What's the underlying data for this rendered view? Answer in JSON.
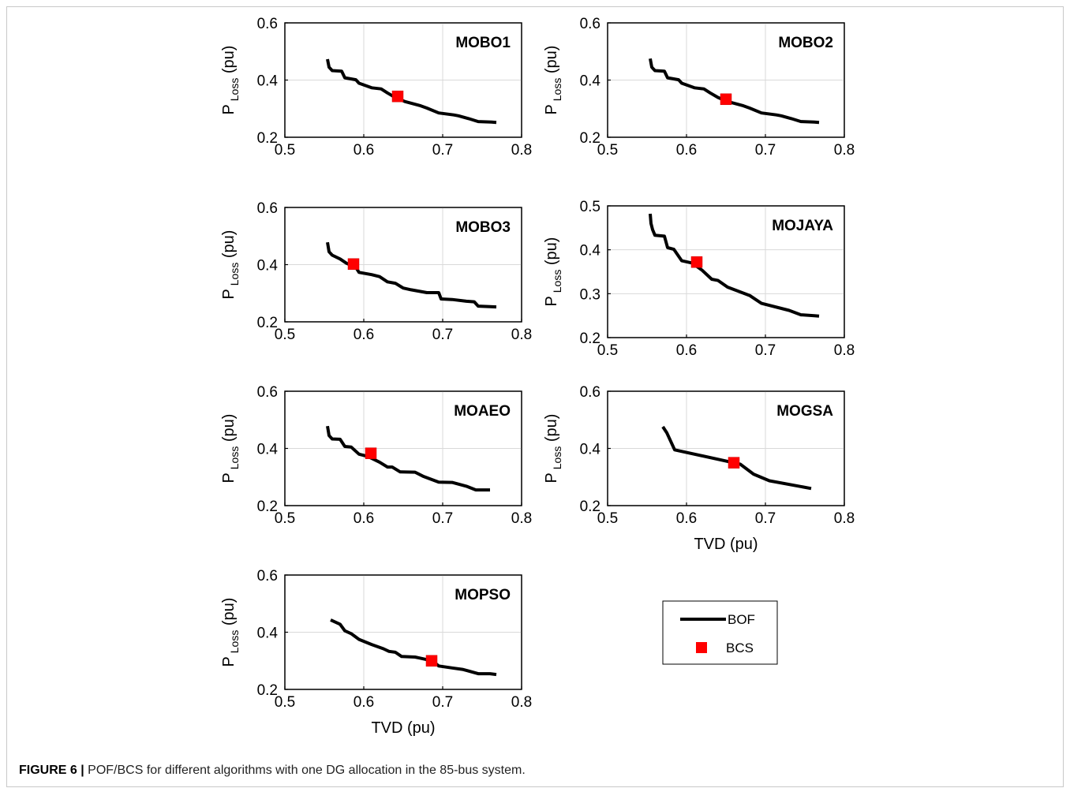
{
  "chart_data": [
    {
      "type": "line",
      "title": "MOBO1",
      "xlabel": "",
      "ylabel": "P",
      "ylabel_sub": "Loss",
      "ylabel_unit": "(pu)",
      "xlim": [
        0.5,
        0.8
      ],
      "ylim": [
        0.2,
        0.6
      ],
      "xticks": [
        "0.5",
        "0.6",
        "0.7",
        "0.8"
      ],
      "yticks": [
        "0.2",
        "0.4",
        "0.6"
      ],
      "grid": true,
      "series": [
        {
          "name": "BOF",
          "x": [
            0.554,
            0.556,
            0.56,
            0.572,
            0.576,
            0.59,
            0.594,
            0.61,
            0.622,
            0.63,
            0.64,
            0.652,
            0.672,
            0.68,
            0.695,
            0.714,
            0.72,
            0.733,
            0.745,
            0.762,
            0.768
          ],
          "y": [
            0.473,
            0.445,
            0.433,
            0.431,
            0.408,
            0.401,
            0.389,
            0.373,
            0.369,
            0.355,
            0.339,
            0.325,
            0.31,
            0.302,
            0.285,
            0.278,
            0.275,
            0.265,
            0.255,
            0.253,
            0.252
          ]
        },
        {
          "name": "BCS",
          "x": [
            0.643
          ],
          "y": [
            0.343
          ]
        }
      ]
    },
    {
      "type": "line",
      "title": "MOBO2",
      "xlabel": "",
      "ylabel": "P",
      "ylabel_sub": "Loss",
      "ylabel_unit": "(pu)",
      "xlim": [
        0.5,
        0.8
      ],
      "ylim": [
        0.2,
        0.6
      ],
      "xticks": [
        "0.5",
        "0.6",
        "0.7",
        "0.8"
      ],
      "yticks": [
        "0.2",
        "0.4",
        "0.6"
      ],
      "grid": true,
      "series": [
        {
          "name": "BOF",
          "x": [
            0.554,
            0.556,
            0.56,
            0.572,
            0.576,
            0.59,
            0.594,
            0.61,
            0.622,
            0.63,
            0.64,
            0.652,
            0.672,
            0.68,
            0.695,
            0.714,
            0.72,
            0.733,
            0.745,
            0.762,
            0.768
          ],
          "y": [
            0.475,
            0.445,
            0.433,
            0.431,
            0.408,
            0.401,
            0.389,
            0.373,
            0.369,
            0.355,
            0.339,
            0.325,
            0.31,
            0.302,
            0.285,
            0.278,
            0.275,
            0.265,
            0.255,
            0.253,
            0.252
          ]
        },
        {
          "name": "BCS",
          "x": [
            0.65
          ],
          "y": [
            0.333
          ]
        }
      ]
    },
    {
      "type": "line",
      "title": "MOBO3",
      "xlabel": "",
      "ylabel": "P",
      "ylabel_sub": "Loss",
      "ylabel_unit": "(pu)",
      "xlim": [
        0.5,
        0.8
      ],
      "ylim": [
        0.2,
        0.6
      ],
      "xticks": [
        "0.5",
        "0.6",
        "0.7",
        "0.8"
      ],
      "yticks": [
        "0.2",
        "0.4",
        "0.6"
      ],
      "grid": true,
      "series": [
        {
          "name": "BOF",
          "x": [
            0.554,
            0.556,
            0.56,
            0.57,
            0.578,
            0.59,
            0.594,
            0.61,
            0.62,
            0.63,
            0.64,
            0.65,
            0.66,
            0.68,
            0.695,
            0.698,
            0.712,
            0.73,
            0.74,
            0.745,
            0.76,
            0.768
          ],
          "y": [
            0.478,
            0.445,
            0.433,
            0.42,
            0.405,
            0.39,
            0.373,
            0.365,
            0.358,
            0.34,
            0.335,
            0.318,
            0.312,
            0.302,
            0.302,
            0.28,
            0.278,
            0.272,
            0.27,
            0.255,
            0.253,
            0.252
          ]
        },
        {
          "name": "BCS",
          "x": [
            0.587
          ],
          "y": [
            0.402
          ]
        }
      ]
    },
    {
      "type": "line",
      "title": "MOJAYA",
      "xlabel": "",
      "ylabel": "P",
      "ylabel_sub": "Loss",
      "ylabel_unit": "(pu)",
      "xlim": [
        0.5,
        0.8
      ],
      "ylim": [
        0.2,
        0.5
      ],
      "xticks": [
        "0.5",
        "0.6",
        "0.7",
        "0.8"
      ],
      "yticks": [
        "0.2",
        "0.3",
        "0.4",
        "0.5"
      ],
      "grid": true,
      "series": [
        {
          "name": "BOF",
          "x": [
            0.554,
            0.555,
            0.557,
            0.56,
            0.572,
            0.576,
            0.584,
            0.594,
            0.607,
            0.62,
            0.632,
            0.64,
            0.652,
            0.68,
            0.695,
            0.73,
            0.745,
            0.762,
            0.768
          ],
          "y": [
            0.482,
            0.46,
            0.446,
            0.433,
            0.431,
            0.405,
            0.401,
            0.375,
            0.37,
            0.353,
            0.333,
            0.33,
            0.315,
            0.296,
            0.278,
            0.262,
            0.252,
            0.25,
            0.249
          ]
        },
        {
          "name": "BCS",
          "x": [
            0.613
          ],
          "y": [
            0.372
          ]
        }
      ]
    },
    {
      "type": "line",
      "title": "MOAEO",
      "xlabel": "",
      "ylabel": "P",
      "ylabel_sub": "Loss",
      "ylabel_unit": "(pu)",
      "xlim": [
        0.5,
        0.8
      ],
      "ylim": [
        0.2,
        0.6
      ],
      "xticks": [
        "0.5",
        "0.6",
        "0.7",
        "0.8"
      ],
      "yticks": [
        "0.2",
        "0.4",
        "0.6"
      ],
      "grid": true,
      "series": [
        {
          "name": "BOF",
          "x": [
            0.554,
            0.556,
            0.56,
            0.57,
            0.576,
            0.584,
            0.594,
            0.605,
            0.62,
            0.63,
            0.636,
            0.646,
            0.665,
            0.675,
            0.695,
            0.712,
            0.73,
            0.742,
            0.76
          ],
          "y": [
            0.478,
            0.445,
            0.433,
            0.432,
            0.407,
            0.405,
            0.38,
            0.372,
            0.352,
            0.335,
            0.335,
            0.318,
            0.317,
            0.303,
            0.282,
            0.281,
            0.268,
            0.255,
            0.255
          ]
        },
        {
          "name": "BCS",
          "x": [
            0.609
          ],
          "y": [
            0.383
          ]
        }
      ]
    },
    {
      "type": "line",
      "title": "MOGSA",
      "xlabel": "TVD (pu)",
      "ylabel": "P",
      "ylabel_sub": "Loss",
      "ylabel_unit": "(pu)",
      "xlim": [
        0.5,
        0.8
      ],
      "ylim": [
        0.2,
        0.6
      ],
      "xticks": [
        "0.5",
        "0.6",
        "0.7",
        "0.8"
      ],
      "yticks": [
        "0.2",
        "0.4",
        "0.6"
      ],
      "grid": true,
      "series": [
        {
          "name": "BOF",
          "x": [
            0.57,
            0.575,
            0.585,
            0.668,
            0.685,
            0.705,
            0.758
          ],
          "y": [
            0.476,
            0.455,
            0.395,
            0.345,
            0.31,
            0.287,
            0.26
          ]
        },
        {
          "name": "BCS",
          "x": [
            0.66
          ],
          "y": [
            0.35
          ]
        }
      ]
    },
    {
      "type": "line",
      "title": "MOPSO",
      "xlabel": "TVD (pu)",
      "ylabel": "P",
      "ylabel_sub": "Loss",
      "ylabel_unit": "(pu)",
      "xlim": [
        0.5,
        0.8
      ],
      "ylim": [
        0.2,
        0.6
      ],
      "xticks": [
        "0.5",
        "0.6",
        "0.7",
        "0.8"
      ],
      "yticks": [
        "0.2",
        "0.4",
        "0.6"
      ],
      "grid": true,
      "series": [
        {
          "name": "BOF",
          "x": [
            0.558,
            0.57,
            0.576,
            0.584,
            0.594,
            0.61,
            0.625,
            0.632,
            0.64,
            0.648,
            0.665,
            0.67,
            0.687,
            0.695,
            0.712,
            0.725,
            0.732,
            0.745,
            0.76,
            0.768
          ],
          "y": [
            0.443,
            0.428,
            0.405,
            0.395,
            0.375,
            0.357,
            0.342,
            0.333,
            0.33,
            0.315,
            0.313,
            0.31,
            0.3,
            0.282,
            0.275,
            0.27,
            0.265,
            0.255,
            0.255,
            0.252
          ]
        },
        {
          "name": "BCS",
          "x": [
            0.686
          ],
          "y": [
            0.3
          ]
        }
      ]
    }
  ],
  "legend": {
    "position": "bottom-right",
    "entries": [
      {
        "label": "BOF",
        "marker": "line",
        "color": "#000000"
      },
      {
        "label": "BCS",
        "marker": "square",
        "color": "#ff0000"
      }
    ]
  },
  "colors": {
    "line": "#000000",
    "marker": "#ff0000",
    "grid": "#d9d9d9"
  },
  "caption": {
    "label": "FIGURE 6 |",
    "text": " POF/BCS for different algorithms with one DG allocation in the 85-bus system."
  }
}
